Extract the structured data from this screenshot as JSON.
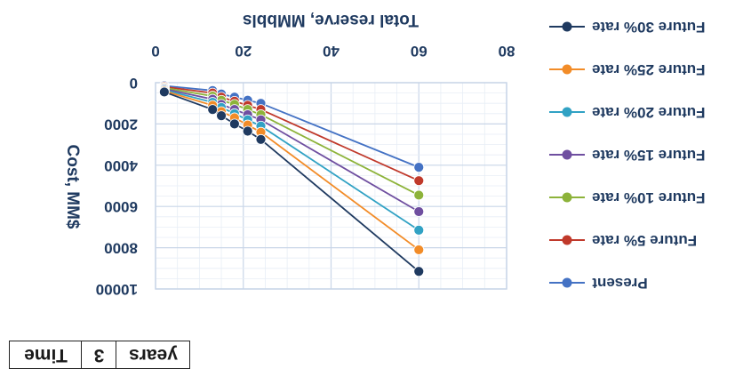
{
  "chart_data": {
    "type": "line",
    "xlabel": "Total reserve, MMbbls",
    "ylabel": "Cost, MM$",
    "xlim": [
      0,
      80
    ],
    "ylim": [
      0,
      10000
    ],
    "x_ticks": [
      "0",
      "20",
      "40",
      "60",
      "80"
    ],
    "y_ticks": [
      "0",
      "2000",
      "4000",
      "6000",
      "8000",
      "10000"
    ],
    "grid": true,
    "legend_position": "right",
    "series": [
      {
        "name": "Present",
        "color": "#4472c4",
        "points": [
          [
            2,
            150
          ],
          [
            13,
            380
          ],
          [
            15,
            550
          ],
          [
            18,
            700
          ],
          [
            21,
            850
          ],
          [
            24,
            1000
          ],
          [
            60,
            4100
          ]
        ]
      },
      {
        "name": "Future 5% rate",
        "color": "#c0392b",
        "points": [
          [
            2,
            200
          ],
          [
            13,
            500
          ],
          [
            15,
            700
          ],
          [
            18,
            900
          ],
          [
            21,
            1100
          ],
          [
            24,
            1300
          ],
          [
            60,
            4750
          ]
        ]
      },
      {
        "name": "Future 10% rate",
        "color": "#8db33a",
        "points": [
          [
            2,
            250
          ],
          [
            13,
            650
          ],
          [
            15,
            850
          ],
          [
            18,
            1050
          ],
          [
            21,
            1300
          ],
          [
            24,
            1550
          ],
          [
            60,
            5450
          ]
        ]
      },
      {
        "name": "Future 15% rate",
        "color": "#6f4fa0",
        "points": [
          [
            2,
            300
          ],
          [
            13,
            800
          ],
          [
            15,
            1050
          ],
          [
            18,
            1300
          ],
          [
            21,
            1550
          ],
          [
            24,
            1800
          ],
          [
            60,
            6250
          ]
        ]
      },
      {
        "name": "Future 20% rate",
        "color": "#31a2c4",
        "points": [
          [
            2,
            350
          ],
          [
            13,
            950
          ],
          [
            15,
            1200
          ],
          [
            18,
            1500
          ],
          [
            21,
            1800
          ],
          [
            24,
            2100
          ],
          [
            60,
            7150
          ]
        ]
      },
      {
        "name": "Future 25% rate",
        "color": "#f28c28",
        "points": [
          [
            2,
            400
          ],
          [
            13,
            1100
          ],
          [
            15,
            1400
          ],
          [
            18,
            1700
          ],
          [
            21,
            2050
          ],
          [
            24,
            2400
          ],
          [
            60,
            8100
          ]
        ]
      },
      {
        "name": "Future 30% rate",
        "color": "#1f3a60",
        "points": [
          [
            2,
            450
          ],
          [
            13,
            1300
          ],
          [
            15,
            1600
          ],
          [
            18,
            2000
          ],
          [
            21,
            2350
          ],
          [
            24,
            2750
          ],
          [
            60,
            9150
          ]
        ]
      }
    ]
  },
  "time_table": {
    "label": "Time",
    "value": "3",
    "unit": "years"
  }
}
